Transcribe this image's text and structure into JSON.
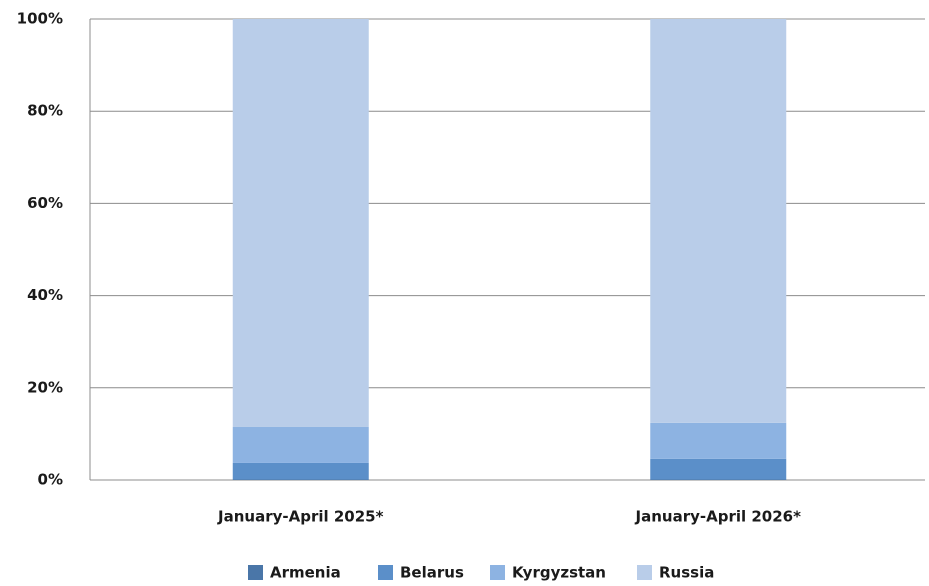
{
  "chart_data": {
    "type": "stacked_bar",
    "categories": [
      "January-April 2025*",
      "January-April 2026*"
    ],
    "series": [
      {
        "name": "Armenia",
        "color": "#4a76a8",
        "values": [
          0.1,
          0.1
        ]
      },
      {
        "name": "Belarus",
        "color": "#5b8fc9",
        "values": [
          3.6,
          4.5
        ]
      },
      {
        "name": "Kyrgyzstan",
        "color": "#8db3e2",
        "values": [
          7.8,
          7.8
        ]
      },
      {
        "name": "Russia",
        "color": "#b9cde9",
        "values": [
          88.5,
          87.6
        ]
      }
    ],
    "ylim": [
      0,
      100
    ],
    "yticks": [
      {
        "value": 0,
        "label": "0%"
      },
      {
        "value": 20,
        "label": "20%"
      },
      {
        "value": 40,
        "label": "40%"
      },
      {
        "value": 60,
        "label": "60%"
      },
      {
        "value": 80,
        "label": "80%"
      },
      {
        "value": 100,
        "label": "100%"
      }
    ],
    "grid": true,
    "legend": "bottom"
  }
}
